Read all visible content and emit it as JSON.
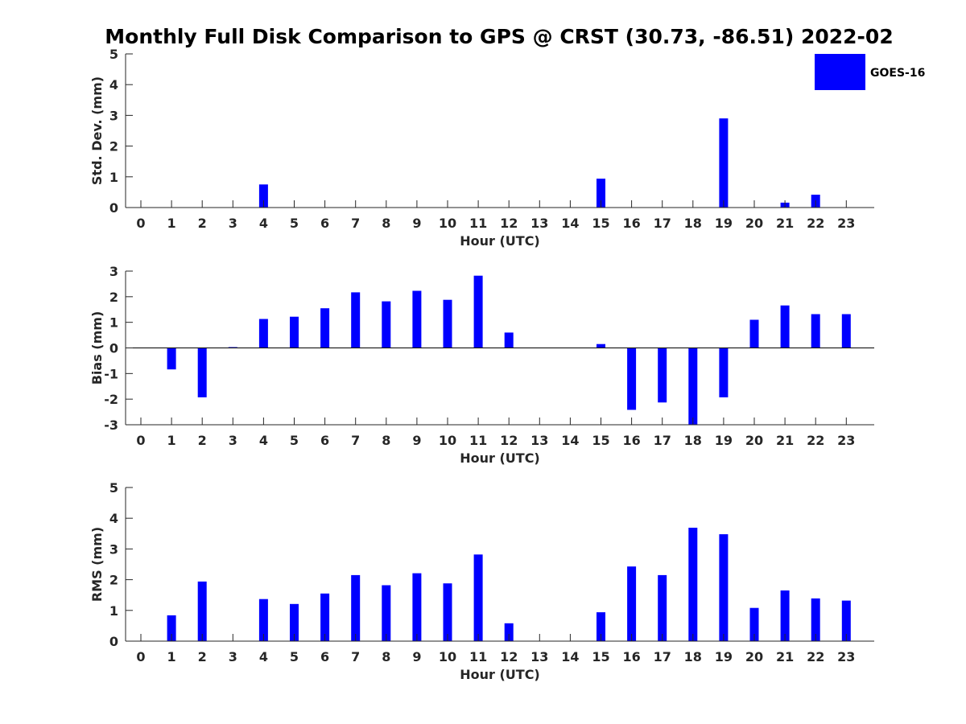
{
  "title": "Monthly Full Disk Comparison to GPS @ CRST (30.73, -86.51) 2022-02",
  "legend": {
    "label": "GOES-16",
    "color": "#0000ff"
  },
  "chart_data": [
    {
      "type": "bar",
      "name": "std-dev",
      "ylabel": "Std. Dev. (mm)",
      "xlabel": "Hour (UTC)",
      "ylim": [
        0,
        5
      ],
      "yticks": [
        0,
        1,
        2,
        3,
        4,
        5
      ],
      "zero_line": false,
      "categories": [
        "0",
        "1",
        "2",
        "3",
        "4",
        "5",
        "6",
        "7",
        "8",
        "9",
        "10",
        "11",
        "12",
        "13",
        "14",
        "15",
        "16",
        "17",
        "18",
        "19",
        "20",
        "21",
        "22",
        "23"
      ],
      "values": [
        null,
        null,
        null,
        null,
        0.75,
        null,
        null,
        null,
        null,
        null,
        null,
        null,
        null,
        null,
        null,
        0.94,
        null,
        null,
        null,
        2.9,
        null,
        0.16,
        0.42,
        null
      ]
    },
    {
      "type": "bar",
      "name": "bias",
      "ylabel": "Bias (mm)",
      "xlabel": "Hour (UTC)",
      "ylim": [
        -3,
        3
      ],
      "yticks": [
        -3,
        -2,
        -1,
        0,
        1,
        2,
        3
      ],
      "zero_line": true,
      "categories": [
        "0",
        "1",
        "2",
        "3",
        "4",
        "5",
        "6",
        "7",
        "8",
        "9",
        "10",
        "11",
        "12",
        "13",
        "14",
        "15",
        "16",
        "17",
        "18",
        "19",
        "20",
        "21",
        "22",
        "23"
      ],
      "values": [
        null,
        -0.84,
        -1.93,
        0.03,
        1.13,
        1.22,
        1.55,
        2.17,
        1.82,
        2.23,
        1.88,
        2.82,
        0.6,
        null,
        null,
        0.15,
        -2.42,
        -2.13,
        -3.0,
        -1.93,
        1.1,
        1.66,
        1.32,
        1.32
      ]
    },
    {
      "type": "bar",
      "name": "rms",
      "ylabel": "RMS (mm)",
      "xlabel": "Hour (UTC)",
      "ylim": [
        0,
        5
      ],
      "yticks": [
        0,
        1,
        2,
        3,
        4,
        5
      ],
      "zero_line": false,
      "categories": [
        "0",
        "1",
        "2",
        "3",
        "4",
        "5",
        "6",
        "7",
        "8",
        "9",
        "10",
        "11",
        "12",
        "13",
        "14",
        "15",
        "16",
        "17",
        "18",
        "19",
        "20",
        "21",
        "22",
        "23"
      ],
      "values": [
        null,
        0.84,
        1.94,
        null,
        1.37,
        1.21,
        1.55,
        2.15,
        1.82,
        2.21,
        1.88,
        2.82,
        0.58,
        null,
        null,
        0.94,
        2.43,
        2.15,
        3.69,
        3.48,
        1.08,
        1.65,
        1.39,
        1.32
      ]
    }
  ]
}
